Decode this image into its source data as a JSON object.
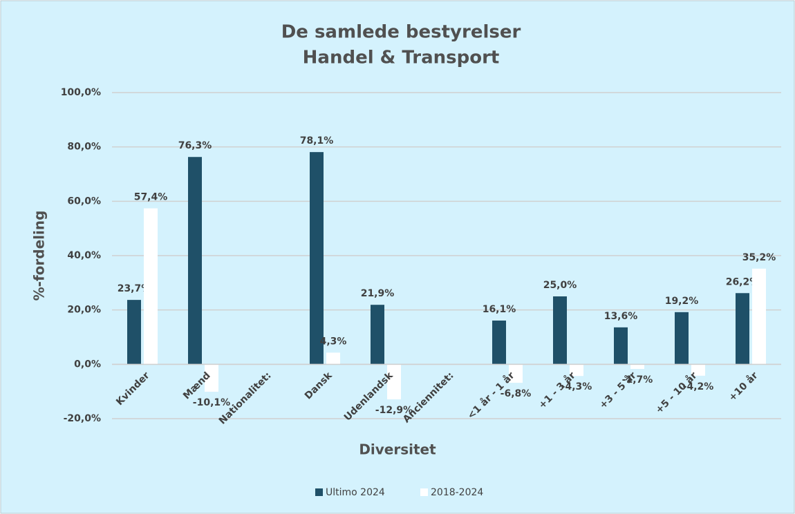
{
  "chart_data": {
    "type": "bar",
    "title": "De samlede bestyrelser",
    "subtitle": "Handel & Transport",
    "y_label": "%-fordeling",
    "x_label": "Diversitet",
    "categories": [
      "Kvinder",
      "Mænd",
      "Nationalitet:",
      "Dansk",
      "Udenlandsk",
      "Anciennitet:",
      "<1 år - 1 år",
      "+1 - 3 år",
      "+3 - 5 år",
      "+5 - 10 år",
      "+10 år"
    ],
    "series": [
      {
        "name": "Ultimo 2024",
        "color": "#1f5068",
        "values": [
          23.7,
          76.3,
          null,
          78.1,
          21.9,
          null,
          16.1,
          25.0,
          13.6,
          19.2,
          26.2
        ],
        "value_labels": [
          "23,7%",
          "76,3%",
          null,
          "78,1%",
          "21,9%",
          null,
          "16,1%",
          "25,0%",
          "13,6%",
          "19,2%",
          "26,2%"
        ]
      },
      {
        "name": "2018-2024",
        "color": "#ffffff",
        "values": [
          57.4,
          -10.1,
          null,
          4.3,
          -12.9,
          null,
          -6.8,
          -4.3,
          -1.7,
          -4.2,
          35.2
        ],
        "value_labels": [
          "57,4%",
          "-10,1%",
          null,
          "4,3%",
          "-12,9%",
          null,
          "-6,8%",
          "-4,3%",
          "-1,7%",
          "-4,2%",
          "35,2%"
        ]
      }
    ],
    "ylim": [
      -20,
      100
    ],
    "yticks": [
      {
        "value": -20,
        "label": "-20,0%"
      },
      {
        "value": 0,
        "label": "0,0%"
      },
      {
        "value": 20,
        "label": "20,0%"
      },
      {
        "value": 40,
        "label": "40,0%"
      },
      {
        "value": 60,
        "label": "60,0%"
      },
      {
        "value": 80,
        "label": "80,0%"
      },
      {
        "value": 100,
        "label": "100,0%"
      }
    ],
    "grid": true,
    "legend": "bottom"
  }
}
